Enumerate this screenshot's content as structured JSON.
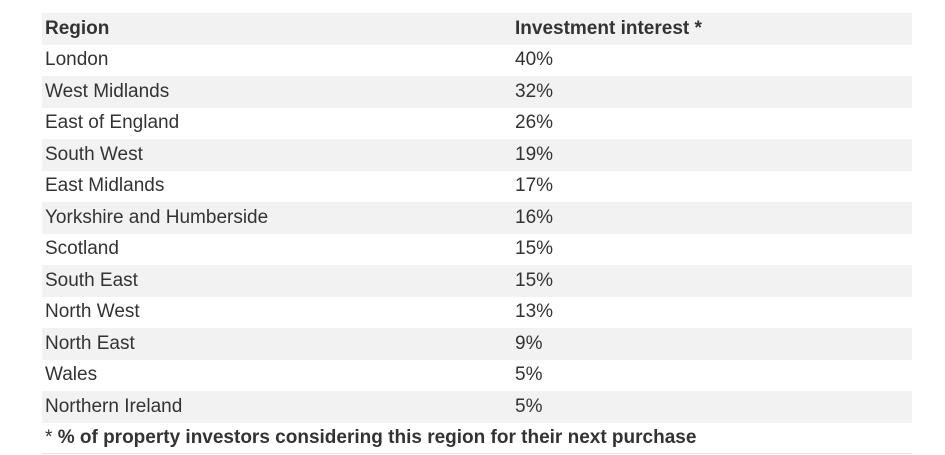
{
  "table": {
    "headers": {
      "region": "Region",
      "interest": "Investment interest *"
    },
    "rows": [
      {
        "region": "London",
        "interest": "40%"
      },
      {
        "region": "West Midlands",
        "interest": "32%"
      },
      {
        "region": "East of England",
        "interest": "26%"
      },
      {
        "region": "South West",
        "interest": "19%"
      },
      {
        "region": "East Midlands",
        "interest": "17%"
      },
      {
        "region": "Yorkshire and Humberside",
        "interest": "16%"
      },
      {
        "region": "Scotland",
        "interest": "15%"
      },
      {
        "region": "South East",
        "interest": "15%"
      },
      {
        "region": "North West",
        "interest": "13%"
      },
      {
        "region": "North East",
        "interest": "9%"
      },
      {
        "region": "Wales",
        "interest": "5%"
      },
      {
        "region": "Northern Ireland",
        "interest": "5%"
      }
    ]
  },
  "footnote": {
    "marker": "* ",
    "text": "% of property investors considering this region for their next purchase"
  },
  "colors": {
    "stripe": "#f2f2f2",
    "text": "#333333"
  }
}
